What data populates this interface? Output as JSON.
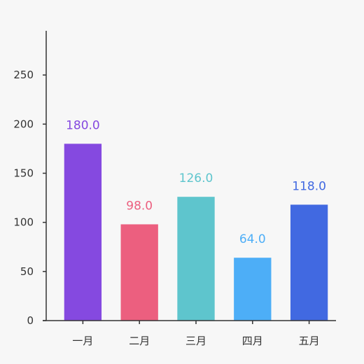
{
  "chart_data": {
    "type": "bar",
    "title": "",
    "xlabel": "",
    "ylabel": "",
    "categories": [
      "一月",
      "二月",
      "三月",
      "四月",
      "五月"
    ],
    "values": [
      180.0,
      98.0,
      126.0,
      64.0,
      118.0
    ],
    "value_labels": [
      "180.0",
      "98.0",
      "126.0",
      "64.0",
      "118.0"
    ],
    "colors": [
      "#8549e0",
      "#ec5f7f",
      "#5ec5cd",
      "#4daef7",
      "#4169e1"
    ],
    "ylim": [
      0,
      295
    ],
    "yticks": [
      0,
      50,
      100,
      150,
      200,
      250
    ],
    "ytick_labels": [
      "0",
      "50",
      "100",
      "150",
      "200",
      "250"
    ],
    "grid": false,
    "legend": "none"
  }
}
